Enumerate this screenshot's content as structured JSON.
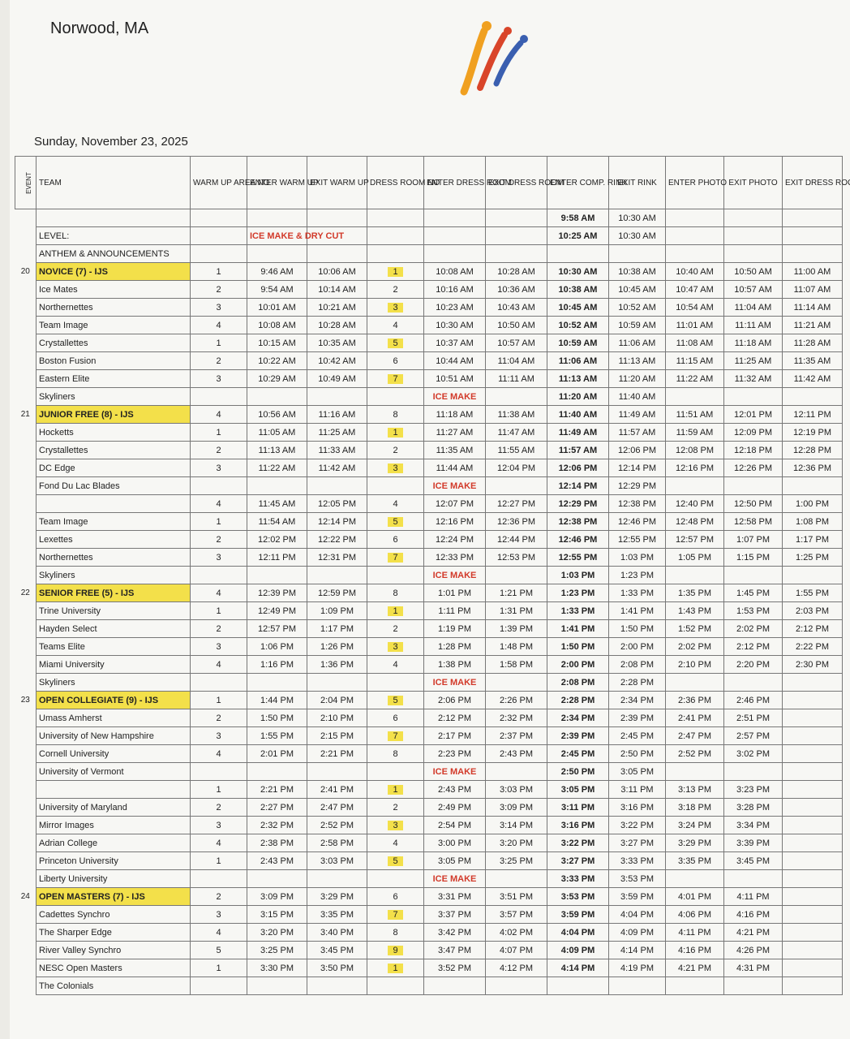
{
  "header": {
    "location": "Norwood, MA",
    "date": "Sunday, November 23, 2025"
  },
  "table": {
    "columns": [
      "EVENT",
      "TEAM",
      "WARM UP AREA NO",
      "ENTER WARM UP",
      "EXIT WARM UP",
      "DRESS ROOM NO",
      "ENTER DRESS ROOM",
      "EXIT DRESS ROOM",
      "ENTER COMP. RINK",
      "EXIT RINK",
      "ENTER PHOTO",
      "EXIT PHOTO",
      "EXIT DRESS ROOM"
    ],
    "highlight_odd_dress_rooms": true,
    "rows": [
      {
        "kind": "plain",
        "cells": [
          null,
          null,
          null,
          null,
          null,
          null,
          null,
          null,
          "9:58 AM",
          "10:30 AM",
          null,
          null,
          null
        ]
      },
      {
        "kind": "plain",
        "cells": [
          null,
          "LEVEL:",
          null,
          "ICE MAKE & DRY CUT",
          null,
          null,
          null,
          null,
          "10:25 AM",
          "10:30 AM",
          null,
          null,
          null
        ]
      },
      {
        "kind": "plain",
        "cells": [
          null,
          "ANTHEM & ANNOUNCEMENTS",
          null,
          null,
          null,
          null,
          null,
          null,
          null,
          null,
          null,
          null,
          null
        ]
      },
      {
        "kind": "event",
        "cells": [
          "20",
          "NOVICE (7) - IJS",
          "1",
          "9:46 AM",
          "10:06 AM",
          "1",
          "10:08 AM",
          "10:28 AM",
          "10:30 AM",
          "10:38 AM",
          "10:40 AM",
          "10:50 AM",
          "11:00 AM"
        ]
      },
      {
        "kind": "team",
        "cells": [
          null,
          "Ice Mates",
          "2",
          "9:54 AM",
          "10:14 AM",
          "2",
          "10:16 AM",
          "10:36 AM",
          "10:38 AM",
          "10:45 AM",
          "10:47 AM",
          "10:57 AM",
          "11:07 AM"
        ]
      },
      {
        "kind": "team",
        "cells": [
          null,
          "Northernettes",
          "3",
          "10:01 AM",
          "10:21 AM",
          "3",
          "10:23 AM",
          "10:43 AM",
          "10:45 AM",
          "10:52 AM",
          "10:54 AM",
          "11:04 AM",
          "11:14 AM"
        ]
      },
      {
        "kind": "team",
        "cells": [
          null,
          "Team Image",
          "4",
          "10:08 AM",
          "10:28 AM",
          "4",
          "10:30 AM",
          "10:50 AM",
          "10:52 AM",
          "10:59 AM",
          "11:01 AM",
          "11:11 AM",
          "11:21 AM"
        ]
      },
      {
        "kind": "team",
        "cells": [
          null,
          "Crystallettes",
          "1",
          "10:15 AM",
          "10:35 AM",
          "5",
          "10:37 AM",
          "10:57 AM",
          "10:59 AM",
          "11:06 AM",
          "11:08 AM",
          "11:18 AM",
          "11:28 AM"
        ]
      },
      {
        "kind": "team",
        "cells": [
          null,
          "Boston Fusion",
          "2",
          "10:22 AM",
          "10:42 AM",
          "6",
          "10:44 AM",
          "11:04 AM",
          "11:06 AM",
          "11:13 AM",
          "11:15 AM",
          "11:25 AM",
          "11:35 AM"
        ]
      },
      {
        "kind": "team",
        "cells": [
          null,
          "Eastern Elite",
          "3",
          "10:29 AM",
          "10:49 AM",
          "7",
          "10:51 AM",
          "11:11 AM",
          "11:13 AM",
          "11:20 AM",
          "11:22 AM",
          "11:32 AM",
          "11:42 AM"
        ]
      },
      {
        "kind": "team",
        "cells": [
          null,
          "Skyliners",
          null,
          null,
          null,
          null,
          "ICE MAKE",
          null,
          "11:20 AM",
          "11:40 AM",
          null,
          null,
          null
        ]
      },
      {
        "kind": "event",
        "cells": [
          "21",
          "JUNIOR FREE (8) - IJS",
          "4",
          "10:56 AM",
          "11:16 AM",
          "8",
          "11:18 AM",
          "11:38 AM",
          "11:40 AM",
          "11:49 AM",
          "11:51 AM",
          "12:01 PM",
          "12:11 PM"
        ]
      },
      {
        "kind": "team",
        "cells": [
          null,
          "Hocketts",
          "1",
          "11:05 AM",
          "11:25 AM",
          "1",
          "11:27 AM",
          "11:47 AM",
          "11:49 AM",
          "11:57 AM",
          "11:59 AM",
          "12:09 PM",
          "12:19 PM"
        ]
      },
      {
        "kind": "team",
        "cells": [
          null,
          "Crystallettes",
          "2",
          "11:13 AM",
          "11:33 AM",
          "2",
          "11:35 AM",
          "11:55 AM",
          "11:57 AM",
          "12:06 PM",
          "12:08 PM",
          "12:18 PM",
          "12:28 PM"
        ]
      },
      {
        "kind": "team",
        "cells": [
          null,
          "DC Edge",
          "3",
          "11:22 AM",
          "11:42 AM",
          "3",
          "11:44 AM",
          "12:04 PM",
          "12:06 PM",
          "12:14 PM",
          "12:16 PM",
          "12:26 PM",
          "12:36 PM"
        ]
      },
      {
        "kind": "team",
        "cells": [
          null,
          "Fond Du Lac Blades",
          null,
          null,
          null,
          null,
          "ICE MAKE",
          null,
          "12:14 PM",
          "12:29 PM",
          null,
          null,
          null
        ]
      },
      {
        "kind": "team",
        "cells": [
          null,
          null,
          "4",
          "11:45 AM",
          "12:05 PM",
          "4",
          "12:07 PM",
          "12:27 PM",
          "12:29 PM",
          "12:38 PM",
          "12:40 PM",
          "12:50 PM",
          "1:00 PM"
        ]
      },
      {
        "kind": "team",
        "cells": [
          null,
          "Team Image",
          "1",
          "11:54 AM",
          "12:14 PM",
          "5",
          "12:16 PM",
          "12:36 PM",
          "12:38 PM",
          "12:46 PM",
          "12:48 PM",
          "12:58 PM",
          "1:08 PM"
        ]
      },
      {
        "kind": "team",
        "cells": [
          null,
          "Lexettes",
          "2",
          "12:02 PM",
          "12:22 PM",
          "6",
          "12:24 PM",
          "12:44 PM",
          "12:46 PM",
          "12:55 PM",
          "12:57 PM",
          "1:07 PM",
          "1:17 PM"
        ]
      },
      {
        "kind": "team",
        "cells": [
          null,
          "Northernettes",
          "3",
          "12:11 PM",
          "12:31 PM",
          "7",
          "12:33 PM",
          "12:53 PM",
          "12:55 PM",
          "1:03 PM",
          "1:05 PM",
          "1:15 PM",
          "1:25 PM"
        ]
      },
      {
        "kind": "team",
        "cells": [
          null,
          "Skyliners",
          null,
          null,
          null,
          null,
          "ICE MAKE",
          null,
          "1:03 PM",
          "1:23 PM",
          null,
          null,
          null
        ]
      },
      {
        "kind": "event",
        "cells": [
          "22",
          "SENIOR FREE (5) - IJS",
          "4",
          "12:39 PM",
          "12:59 PM",
          "8",
          "1:01 PM",
          "1:21 PM",
          "1:23 PM",
          "1:33 PM",
          "1:35 PM",
          "1:45 PM",
          "1:55 PM"
        ]
      },
      {
        "kind": "team",
        "cells": [
          null,
          "Trine University",
          "1",
          "12:49 PM",
          "1:09 PM",
          "1",
          "1:11 PM",
          "1:31 PM",
          "1:33 PM",
          "1:41 PM",
          "1:43 PM",
          "1:53 PM",
          "2:03 PM"
        ]
      },
      {
        "kind": "team",
        "cells": [
          null,
          "Hayden Select",
          "2",
          "12:57 PM",
          "1:17 PM",
          "2",
          "1:19 PM",
          "1:39 PM",
          "1:41 PM",
          "1:50 PM",
          "1:52 PM",
          "2:02 PM",
          "2:12 PM"
        ]
      },
      {
        "kind": "team",
        "cells": [
          null,
          "Teams Elite",
          "3",
          "1:06 PM",
          "1:26 PM",
          "3",
          "1:28 PM",
          "1:48 PM",
          "1:50 PM",
          "2:00 PM",
          "2:02 PM",
          "2:12 PM",
          "2:22 PM"
        ]
      },
      {
        "kind": "team",
        "cells": [
          null,
          "Miami University",
          "4",
          "1:16 PM",
          "1:36 PM",
          "4",
          "1:38 PM",
          "1:58 PM",
          "2:00 PM",
          "2:08 PM",
          "2:10 PM",
          "2:20 PM",
          "2:30 PM"
        ]
      },
      {
        "kind": "team",
        "cells": [
          null,
          "Skyliners",
          null,
          null,
          null,
          null,
          "ICE MAKE",
          null,
          "2:08 PM",
          "2:28 PM",
          null,
          null,
          null
        ]
      },
      {
        "kind": "event",
        "cells": [
          "23",
          "OPEN COLLEGIATE (9) - IJS",
          "1",
          "1:44 PM",
          "2:04 PM",
          "5",
          "2:06 PM",
          "2:26 PM",
          "2:28 PM",
          "2:34 PM",
          "2:36 PM",
          "2:46 PM",
          null
        ]
      },
      {
        "kind": "team",
        "cells": [
          null,
          "Umass Amherst",
          "2",
          "1:50 PM",
          "2:10 PM",
          "6",
          "2:12 PM",
          "2:32 PM",
          "2:34 PM",
          "2:39 PM",
          "2:41 PM",
          "2:51 PM",
          null
        ]
      },
      {
        "kind": "team",
        "cells": [
          null,
          "University of New Hampshire",
          "3",
          "1:55 PM",
          "2:15 PM",
          "7",
          "2:17 PM",
          "2:37 PM",
          "2:39 PM",
          "2:45 PM",
          "2:47 PM",
          "2:57 PM",
          null
        ]
      },
      {
        "kind": "team",
        "cells": [
          null,
          "Cornell University",
          "4",
          "2:01 PM",
          "2:21 PM",
          "8",
          "2:23 PM",
          "2:43 PM",
          "2:45 PM",
          "2:50 PM",
          "2:52 PM",
          "3:02 PM",
          null
        ]
      },
      {
        "kind": "team",
        "cells": [
          null,
          "University of Vermont",
          null,
          null,
          null,
          null,
          "ICE MAKE",
          null,
          "2:50 PM",
          "3:05 PM",
          null,
          null,
          null
        ]
      },
      {
        "kind": "team",
        "cells": [
          null,
          null,
          "1",
          "2:21 PM",
          "2:41 PM",
          "1",
          "2:43 PM",
          "3:03 PM",
          "3:05 PM",
          "3:11 PM",
          "3:13 PM",
          "3:23 PM",
          null
        ]
      },
      {
        "kind": "team",
        "cells": [
          null,
          "University of Maryland",
          "2",
          "2:27 PM",
          "2:47 PM",
          "2",
          "2:49 PM",
          "3:09 PM",
          "3:11 PM",
          "3:16 PM",
          "3:18 PM",
          "3:28 PM",
          null
        ]
      },
      {
        "kind": "team",
        "cells": [
          null,
          "Mirror Images",
          "3",
          "2:32 PM",
          "2:52 PM",
          "3",
          "2:54 PM",
          "3:14 PM",
          "3:16 PM",
          "3:22 PM",
          "3:24 PM",
          "3:34 PM",
          null
        ]
      },
      {
        "kind": "team",
        "cells": [
          null,
          "Adrian College",
          "4",
          "2:38 PM",
          "2:58 PM",
          "4",
          "3:00 PM",
          "3:20 PM",
          "3:22 PM",
          "3:27 PM",
          "3:29 PM",
          "3:39 PM",
          null
        ]
      },
      {
        "kind": "team",
        "cells": [
          null,
          "Princeton University",
          "1",
          "2:43 PM",
          "3:03 PM",
          "5",
          "3:05 PM",
          "3:25 PM",
          "3:27 PM",
          "3:33 PM",
          "3:35 PM",
          "3:45 PM",
          null
        ]
      },
      {
        "kind": "team",
        "cells": [
          null,
          "Liberty University",
          null,
          null,
          null,
          null,
          "ICE MAKE",
          null,
          "3:33 PM",
          "3:53 PM",
          null,
          null,
          null
        ]
      },
      {
        "kind": "event",
        "cells": [
          "24",
          "OPEN MASTERS (7) - IJS",
          "2",
          "3:09 PM",
          "3:29 PM",
          "6",
          "3:31 PM",
          "3:51 PM",
          "3:53 PM",
          "3:59 PM",
          "4:01 PM",
          "4:11 PM",
          null
        ]
      },
      {
        "kind": "team",
        "cells": [
          null,
          "Cadettes Synchro",
          "3",
          "3:15 PM",
          "3:35 PM",
          "7",
          "3:37 PM",
          "3:57 PM",
          "3:59 PM",
          "4:04 PM",
          "4:06 PM",
          "4:16 PM",
          null
        ]
      },
      {
        "kind": "team",
        "cells": [
          null,
          "The Sharper Edge",
          "4",
          "3:20 PM",
          "3:40 PM",
          "8",
          "3:42 PM",
          "4:02 PM",
          "4:04 PM",
          "4:09 PM",
          "4:11 PM",
          "4:21 PM",
          null
        ]
      },
      {
        "kind": "team",
        "cells": [
          null,
          "River Valley Synchro",
          "5",
          "3:25 PM",
          "3:45 PM",
          "9",
          "3:47 PM",
          "4:07 PM",
          "4:09 PM",
          "4:14 PM",
          "4:16 PM",
          "4:26 PM",
          null
        ]
      },
      {
        "kind": "team",
        "cells": [
          null,
          "NESC Open Masters",
          "1",
          "3:30 PM",
          "3:50 PM",
          "1",
          "3:52 PM",
          "4:12 PM",
          "4:14 PM",
          "4:19 PM",
          "4:21 PM",
          "4:31 PM",
          null
        ]
      },
      {
        "kind": "team",
        "cells": [
          null,
          "The Colonials",
          null,
          null,
          null,
          null,
          null,
          null,
          null,
          null,
          null,
          null,
          null
        ]
      }
    ]
  }
}
